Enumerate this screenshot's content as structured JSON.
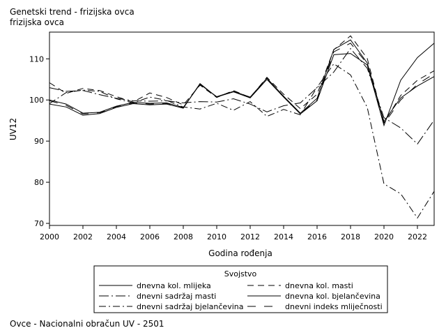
{
  "title": "Genetski trend - frizijska ovca",
  "subtitle": "frizijska ovca",
  "footer": "Ovce - Nacionalni obračun UV - 2501",
  "chart_data": {
    "type": "line",
    "xlabel": "Godina rođenja",
    "ylabel": "UV12",
    "xlim": [
      2000,
      2023
    ],
    "ylim": [
      69.5,
      116.5
    ],
    "xticks": [
      2000,
      2002,
      2004,
      2006,
      2008,
      2010,
      2012,
      2014,
      2016,
      2018,
      2020,
      2022
    ],
    "yticks": [
      70,
      80,
      90,
      100,
      110
    ],
    "legend_title": "Svojstvo",
    "legend_position": "bottom",
    "x": [
      2000,
      2001,
      2002,
      2003,
      2004,
      2005,
      2006,
      2007,
      2008,
      2009,
      2010,
      2011,
      2012,
      2013,
      2014,
      2015,
      2016,
      2017,
      2018,
      2019,
      2020,
      2021,
      2022,
      2023
    ],
    "series": [
      {
        "name": "dnevna kol. mlijeka",
        "dash": "",
        "values": [
          99.0,
          98.3,
          96.3,
          96.7,
          98.2,
          99.1,
          98.8,
          99.0,
          98.0,
          104.0,
          100.7,
          102.0,
          100.5,
          105.0,
          100.7,
          96.6,
          99.8,
          111.0,
          111.3,
          108.5,
          93.8,
          104.8,
          110.3,
          113.8
        ]
      },
      {
        "name": "dnevna kol. masti",
        "dash": "9,6",
        "values": [
          104.2,
          101.6,
          102.8,
          102.3,
          100.8,
          99.5,
          101.7,
          100.6,
          98.8,
          103.6,
          100.6,
          102.3,
          100.6,
          105.5,
          101.4,
          97.9,
          101.4,
          112.2,
          115.6,
          110.1,
          94.4,
          101.1,
          104.8,
          107.1
        ]
      },
      {
        "name": "dnevni sadržaj masti",
        "dash": "14,4,2,4",
        "values": [
          103.0,
          102.1,
          102.3,
          101.3,
          100.4,
          99.8,
          99.7,
          99.8,
          99.3,
          99.6,
          99.5,
          100.3,
          99.0,
          97.1,
          98.6,
          99.3,
          103.0,
          106.8,
          112.5,
          107.7,
          95.7,
          93.2,
          89.3,
          95.1
        ]
      },
      {
        "name": "dnevna kol. bjelančevina",
        "dash": "",
        "values": [
          100.0,
          99.0,
          96.8,
          97.0,
          98.5,
          99.4,
          99.2,
          99.3,
          98.2,
          103.8,
          100.8,
          102.1,
          100.7,
          105.3,
          100.9,
          96.8,
          100.4,
          112.3,
          114.6,
          109.0,
          94.8,
          100.5,
          103.4,
          105.7
        ]
      },
      {
        "name": "dnevni sadržaj bjelančevina",
        "dash": "10,4,2,4",
        "values": [
          99.1,
          101.8,
          102.4,
          102.1,
          100.3,
          99.3,
          100.7,
          99.9,
          98.3,
          97.8,
          99.2,
          97.5,
          99.6,
          96.0,
          97.7,
          96.4,
          103.1,
          108.8,
          106.1,
          98.2,
          79.6,
          77.2,
          71.3,
          77.8
        ]
      },
      {
        "name": "dnevni indeks mliječnosti",
        "dash": "12,12",
        "values": [
          99.8,
          98.7,
          96.6,
          96.9,
          98.4,
          99.3,
          99.0,
          99.2,
          98.1,
          103.9,
          100.7,
          102.0,
          100.6,
          105.1,
          100.8,
          96.7,
          100.0,
          111.7,
          113.8,
          108.8,
          94.2,
          100.0,
          103.8,
          106.4
        ]
      }
    ]
  }
}
